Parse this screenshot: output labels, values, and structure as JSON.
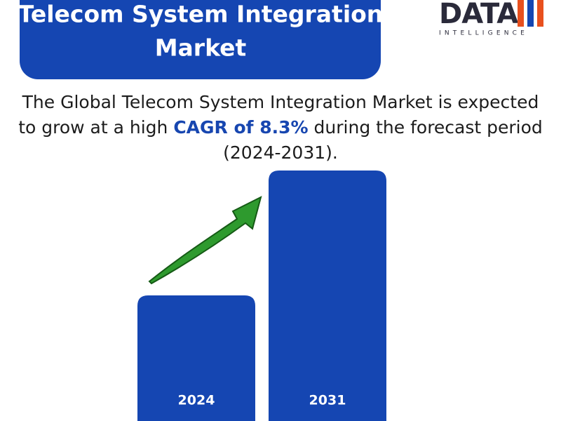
{
  "header": {
    "title_lines": [
      "Telecom System Integration",
      "Market"
    ]
  },
  "logo": {
    "brand": "DATA",
    "tagline": "INTELLIGENCE"
  },
  "statement": {
    "line1": "The Global Telecom System Integration Market is expected",
    "line2_before": "to grow at a high",
    "highlight": "CAGR of 8.3%",
    "line2_after": "during the forecast period",
    "line3": "(2024-2031)."
  },
  "bars": [
    {
      "label": "2024"
    },
    {
      "label": "2031"
    }
  ]
}
